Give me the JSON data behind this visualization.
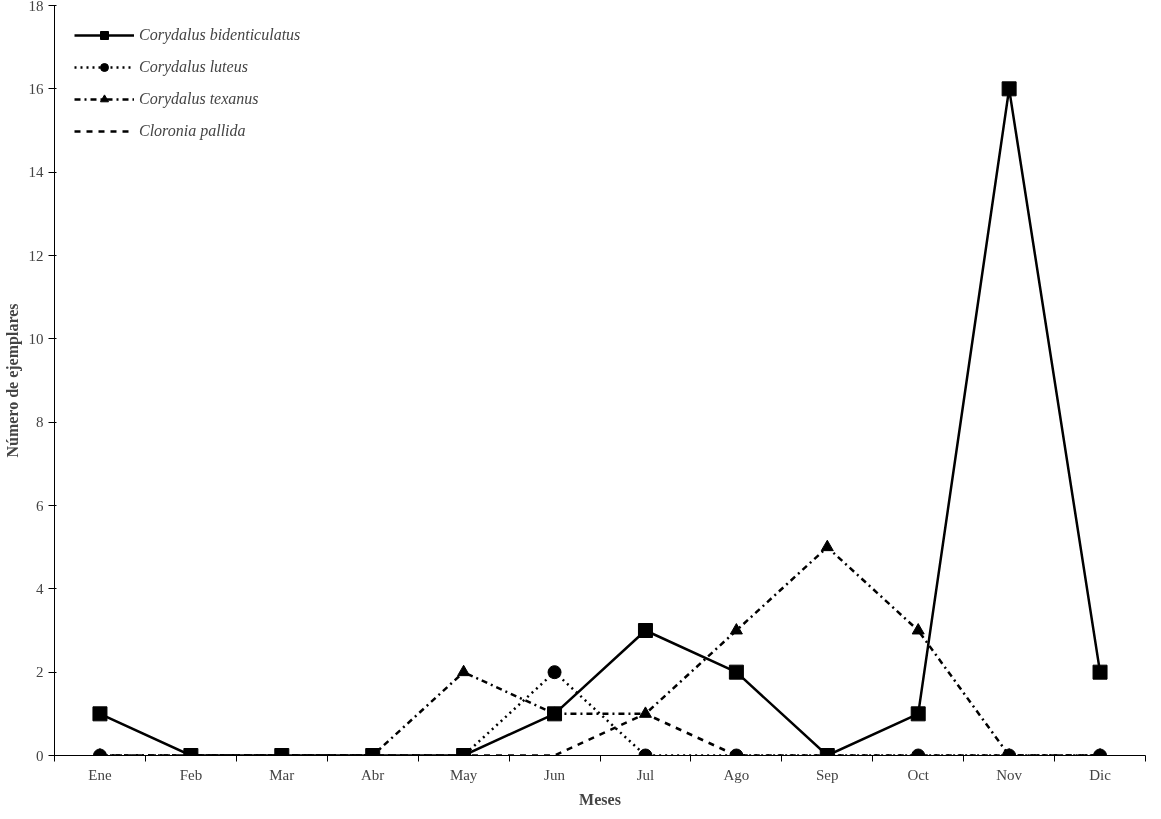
{
  "chart_data": {
    "type": "line",
    "xlabel": "Meses",
    "ylabel": "Número de ejemplares",
    "categories": [
      "Ene",
      "Feb",
      "Mar",
      "Abr",
      "May",
      "Jun",
      "Jul",
      "Ago",
      "Sep",
      "Oct",
      "Nov",
      "Dic"
    ],
    "ylim": [
      0,
      18
    ],
    "yticks": [
      0,
      2,
      4,
      6,
      8,
      10,
      12,
      14,
      16,
      18
    ],
    "grid": false,
    "legend": "top left",
    "series": [
      {
        "name": "Corydalus bidenticulatus",
        "color": "#000000",
        "marker": "square",
        "line_style": "solid",
        "values": [
          1,
          0,
          0,
          0,
          0,
          1,
          3,
          2,
          0,
          1,
          16,
          2
        ]
      },
      {
        "name": "Corydalus luteus",
        "color": "#000000",
        "marker": "circle",
        "line_style": "dotted",
        "values": [
          0,
          0,
          0,
          0,
          0,
          2,
          0,
          0,
          0,
          0,
          0,
          0
        ]
      },
      {
        "name": "Corydalus texanus",
        "color": "#000000",
        "marker": "triangle",
        "line_style": "dashdot",
        "values": [
          0,
          0,
          0,
          0,
          2,
          1,
          1,
          3,
          5,
          3,
          0,
          0
        ]
      },
      {
        "name": "Cloronia pallida",
        "color": "#000000",
        "marker": "none",
        "line_style": "dashed",
        "values": [
          0,
          0,
          0,
          0,
          0,
          0,
          1,
          0,
          0,
          0,
          0,
          0
        ]
      }
    ]
  }
}
